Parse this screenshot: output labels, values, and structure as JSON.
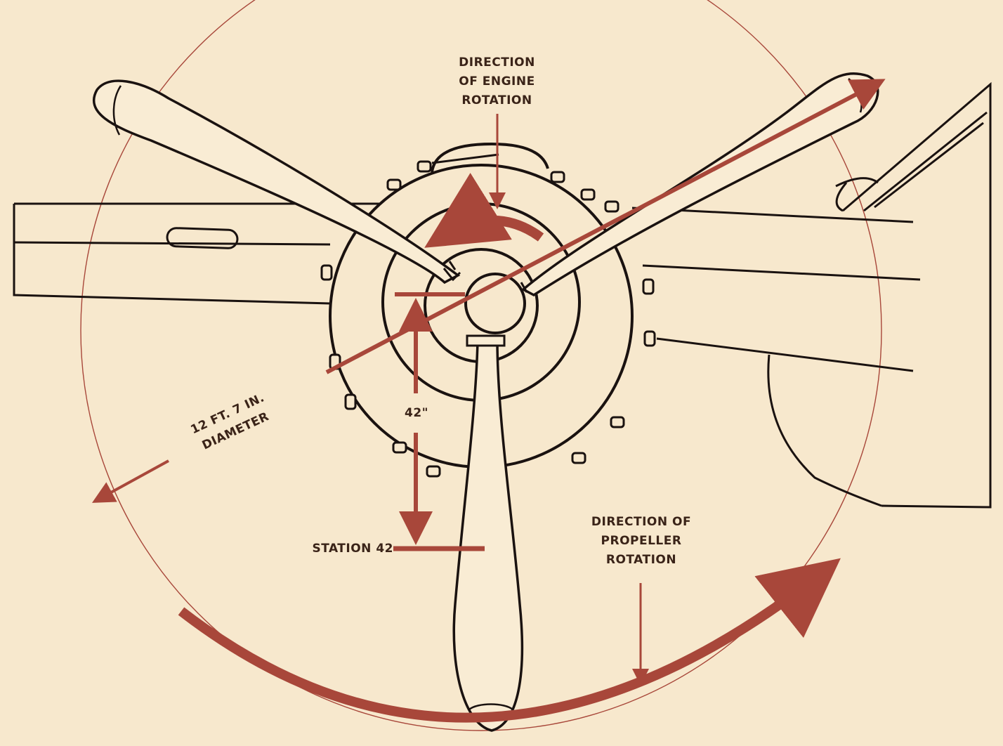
{
  "labels": {
    "engine_rotation": [
      "DIRECTION",
      "OF ENGINE",
      "ROTATION"
    ],
    "propeller_rotation": [
      "DIRECTION OF",
      "PROPELLER",
      "ROTATION"
    ],
    "diameter": [
      "12 FT. 7 IN.",
      "DIAMETER"
    ],
    "station": "STATION 42",
    "dimension": "42\""
  },
  "colors": {
    "background": "#f7e8cd",
    "ink": "#1a1210",
    "accent": "#a8473a",
    "blade_fill": "#f9ecd4"
  }
}
